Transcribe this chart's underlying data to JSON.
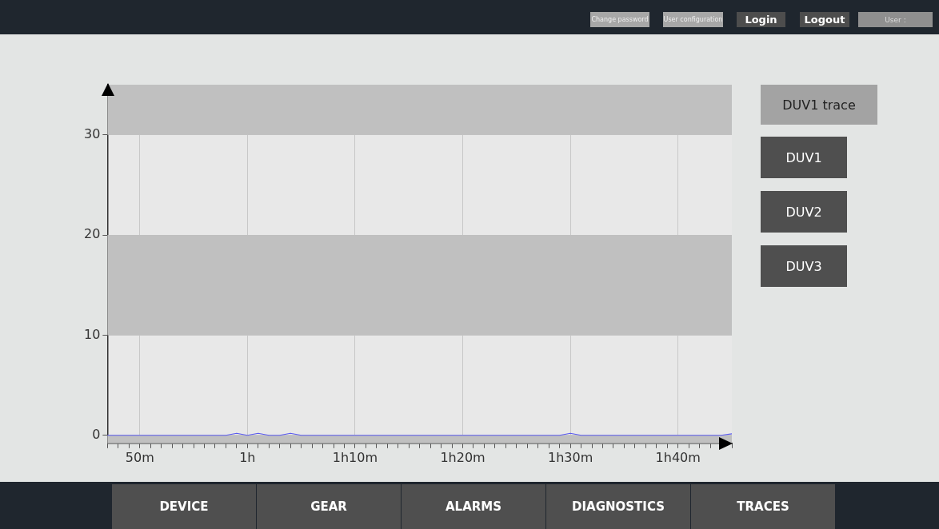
{
  "chart_data": {
    "type": "line",
    "categories": [
      null,
      null,
      null,
      "50m",
      null,
      null,
      null,
      null,
      null,
      null,
      null,
      null,
      null,
      "1h",
      null,
      null,
      null,
      null,
      null,
      null,
      null,
      null,
      null,
      "1h10m",
      null,
      null,
      null,
      null,
      null,
      null,
      null,
      null,
      null,
      "1h20m",
      null,
      null,
      null,
      null,
      null,
      null,
      null,
      null,
      null,
      "1h30m",
      null,
      null,
      null,
      null,
      null,
      null,
      null,
      null,
      null,
      "1h40m",
      null,
      null,
      null,
      null,
      null
    ],
    "series": [
      {
        "color": "#5b5bf0",
        "values": [
          0,
          0,
          0,
          0,
          0,
          0,
          0,
          0,
          0,
          0,
          0,
          0,
          0.2,
          0,
          0.2,
          0,
          0,
          0.2,
          0,
          0,
          0,
          0,
          0,
          0,
          0,
          0,
          0,
          0,
          0,
          0,
          0,
          0,
          0,
          0,
          0,
          0,
          0,
          0,
          0,
          0,
          0,
          0,
          0,
          0.2,
          0,
          0,
          0,
          0,
          0,
          0,
          0,
          0,
          0,
          0,
          0,
          0,
          0,
          0,
          0.15
        ]
      }
    ],
    "ylim": [
      -0.8,
      35
    ],
    "yticks": [
      0,
      10,
      20,
      30
    ],
    "bands": [
      {
        "axis": "y",
        "from": 30,
        "to": 35,
        "color": "#c0c0c0"
      },
      {
        "axis": "y",
        "from": 10,
        "to": 20,
        "color": "#c0c0c0"
      },
      {
        "axis": "y",
        "from": -0.8,
        "to": 0,
        "color": "#c0c0c0"
      }
    ],
    "grid": true,
    "legend": false,
    "marker": "none",
    "line_style": "solid",
    "annotations": [
      "Change password",
      "User configuration",
      "Login",
      "Logout",
      "User :",
      "DUV1 trace",
      "DUV1",
      "DUV2",
      "DUV3",
      "DEVICE",
      "GEAR",
      "ALARMS",
      "DIAGNOSTICS",
      "TRACES"
    ]
  }
}
